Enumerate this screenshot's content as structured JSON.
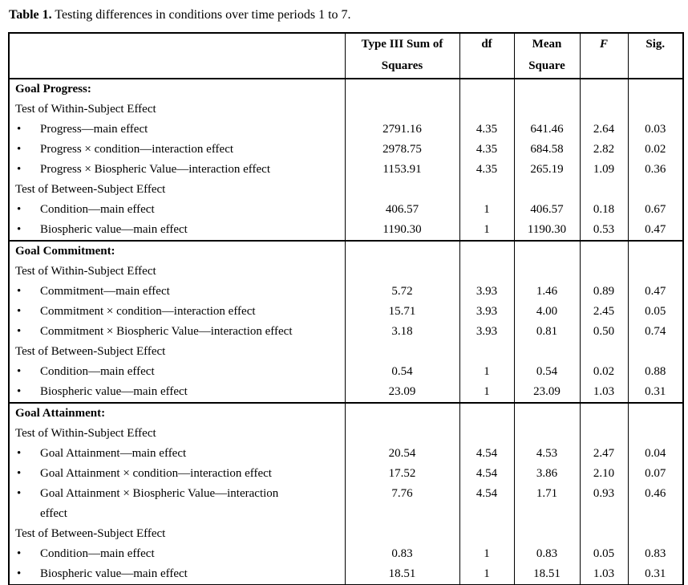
{
  "title": {
    "label": "Table 1.",
    "text": " Testing differences in conditions over time periods 1 to 7."
  },
  "table": {
    "bullet": "•",
    "columns": [
      "",
      "Type III Sum of Squares",
      "df",
      "Mean Square",
      "F",
      "Sig."
    ],
    "rows": [
      {
        "type": "section",
        "label": "Goal Progress:"
      },
      {
        "type": "subheader",
        "label": "Test of Within-Subject Effect"
      },
      {
        "type": "data",
        "label": "Progress—main effect",
        "values": [
          "2791.16",
          "4.35",
          "641.46",
          "2.64",
          "0.03"
        ]
      },
      {
        "type": "data",
        "label": "Progress × condition—interaction effect",
        "values": [
          "2978.75",
          "4.35",
          "684.58",
          "2.82",
          "0.02"
        ]
      },
      {
        "type": "data",
        "label": "Progress × Biospheric Value—interaction effect",
        "values": [
          "1153.91",
          "4.35",
          "265.19",
          "1.09",
          "0.36"
        ]
      },
      {
        "type": "subheader",
        "label": "Test of Between-Subject Effect"
      },
      {
        "type": "data",
        "label": "Condition—main effect",
        "values": [
          "406.57",
          "1",
          "406.57",
          "0.18",
          "0.67"
        ]
      },
      {
        "type": "data",
        "label": "Biospheric value—main effect",
        "values": [
          "1190.30",
          "1",
          "1190.30",
          "0.53",
          "0.47"
        ]
      },
      {
        "type": "section",
        "label": "Goal Commitment:"
      },
      {
        "type": "subheader",
        "label": "Test of Within-Subject Effect"
      },
      {
        "type": "data",
        "label": "Commitment—main effect",
        "values": [
          "5.72",
          "3.93",
          "1.46",
          "0.89",
          "0.47"
        ]
      },
      {
        "type": "data",
        "label": "Commitment × condition—interaction effect",
        "values": [
          "15.71",
          "3.93",
          "4.00",
          "2.45",
          "0.05"
        ]
      },
      {
        "type": "data",
        "label": "Commitment × Biospheric Value—interaction effect",
        "values": [
          "3.18",
          "3.93",
          "0.81",
          "0.50",
          "0.74"
        ]
      },
      {
        "type": "subheader",
        "label": "Test of Between-Subject Effect"
      },
      {
        "type": "data",
        "label": "Condition—main effect",
        "values": [
          "0.54",
          "1",
          "0.54",
          "0.02",
          "0.88"
        ]
      },
      {
        "type": "data",
        "label": "Biospheric value—main effect",
        "values": [
          "23.09",
          "1",
          "23.09",
          "1.03",
          "0.31"
        ]
      },
      {
        "type": "section",
        "label": "Goal Attainment:"
      },
      {
        "type": "subheader",
        "label": "Test of Within-Subject Effect"
      },
      {
        "type": "data",
        "label": "Goal Attainment—main effect",
        "values": [
          "20.54",
          "4.54",
          "4.53",
          "2.47",
          "0.04"
        ]
      },
      {
        "type": "data",
        "label": "Goal Attainment × condition—interaction effect",
        "values": [
          "17.52",
          "4.54",
          "3.86",
          "2.10",
          "0.07"
        ]
      },
      {
        "type": "data",
        "label": "Goal Attainment × Biospheric Value—interaction\neffect",
        "values": [
          "7.76",
          "4.54",
          "1.71",
          "0.93",
          "0.46"
        ]
      },
      {
        "type": "subheader",
        "label": "Test of Between-Subject Effect"
      },
      {
        "type": "data",
        "label": "Condition—main effect",
        "values": [
          "0.83",
          "1",
          "0.83",
          "0.05",
          "0.83"
        ]
      },
      {
        "type": "data",
        "label": "Biospheric value—main effect",
        "values": [
          "18.51",
          "1",
          "18.51",
          "1.03",
          "0.31"
        ]
      }
    ]
  },
  "colors": {
    "text": "#000000",
    "border": "#000000",
    "background": "#ffffff"
  }
}
